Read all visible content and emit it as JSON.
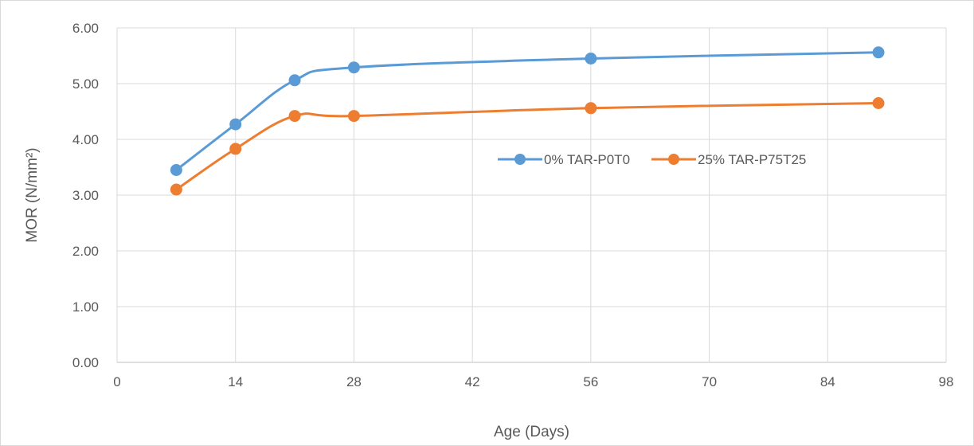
{
  "chart_data": {
    "type": "line",
    "title": "",
    "xlabel": "Age (Days)",
    "ylabel": "MOR (N/mm²)",
    "xlim": [
      0,
      98
    ],
    "ylim": [
      0,
      6
    ],
    "xticks": [
      "0",
      "14",
      "28",
      "42",
      "56",
      "70",
      "84",
      "98"
    ],
    "xtick_values": [
      0,
      14,
      28,
      42,
      56,
      70,
      84,
      98
    ],
    "yticks": [
      "0.00",
      "1.00",
      "2.00",
      "3.00",
      "4.00",
      "5.00",
      "6.00"
    ],
    "ytick_values": [
      0,
      1,
      2,
      3,
      4,
      5,
      6
    ],
    "grid": true,
    "legend_position": "center-right",
    "smooth": true,
    "x": [
      7,
      14,
      21,
      28,
      56,
      90
    ],
    "series": [
      {
        "name": "0% TAR-P0T0",
        "color": "#5b9bd5",
        "values": [
          3.45,
          4.27,
          5.06,
          5.29,
          5.45,
          5.56
        ]
      },
      {
        "name": "25% TAR-P75T25",
        "color": "#ed7d31",
        "values": [
          3.1,
          3.83,
          4.42,
          4.42,
          4.56,
          4.65
        ]
      }
    ]
  }
}
